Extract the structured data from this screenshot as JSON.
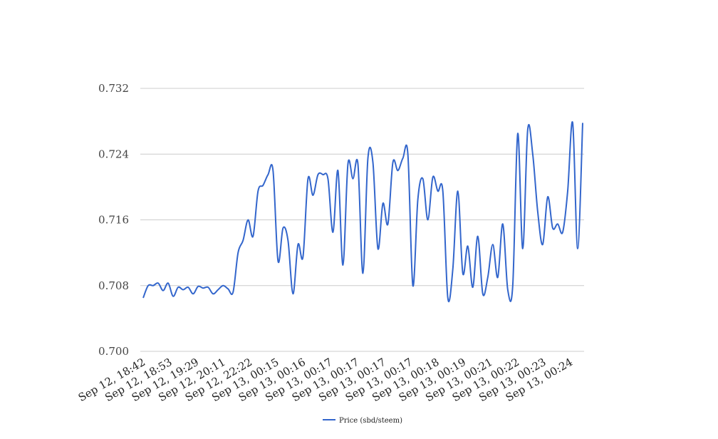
{
  "chart_data": {
    "type": "line",
    "title": "",
    "xlabel": "",
    "ylabel": "",
    "ylim": [
      0.7,
      0.732
    ],
    "y_ticks": [
      "0.700",
      "0.708",
      "0.716",
      "0.724",
      "0.732"
    ],
    "x_tick_labels": [
      "Sep 12, 18:42",
      "Sep 12, 18:53",
      "Sep 12, 19:29",
      "Sep 12, 20:11",
      "Sep 12, 22:22",
      "Sep 13, 00:15",
      "Sep 13, 00:16",
      "Sep 13, 00:17",
      "Sep 13, 00:17",
      "Sep 13, 00:17",
      "Sep 13, 00:17",
      "Sep 13, 00:18",
      "Sep 13, 00:19",
      "Sep 13, 00:21",
      "Sep 13, 00:22",
      "Sep 13, 00:23",
      "Sep 13, 00:24"
    ],
    "grid": true,
    "legend_position": "bottom",
    "colors": {
      "series": "#3366cc",
      "grid": "#cccccc"
    },
    "series": [
      {
        "name": "Price (sbd/steem)",
        "values": [
          0.7065,
          0.708,
          0.708,
          0.7083,
          0.7074,
          0.7083,
          0.7067,
          0.7078,
          0.7075,
          0.7078,
          0.707,
          0.7079,
          0.7077,
          0.7078,
          0.707,
          0.7075,
          0.708,
          0.7076,
          0.7072,
          0.712,
          0.7135,
          0.716,
          0.714,
          0.7195,
          0.7202,
          0.7215,
          0.722,
          0.711,
          0.715,
          0.7135,
          0.707,
          0.713,
          0.7115,
          0.721,
          0.719,
          0.7215,
          0.7215,
          0.721,
          0.7145,
          0.722,
          0.7105,
          0.7228,
          0.721,
          0.7228,
          0.7095,
          0.7235,
          0.723,
          0.7125,
          0.718,
          0.7155,
          0.723,
          0.722,
          0.7235,
          0.724,
          0.708,
          0.7185,
          0.721,
          0.716,
          0.7212,
          0.7195,
          0.7195,
          0.7065,
          0.71,
          0.7195,
          0.7095,
          0.7128,
          0.7078,
          0.714,
          0.707,
          0.709,
          0.713,
          0.709,
          0.7155,
          0.7075,
          0.708,
          0.7265,
          0.7125,
          0.727,
          0.724,
          0.717,
          0.713,
          0.7188,
          0.715,
          0.7155,
          0.7145,
          0.7195,
          0.7278,
          0.7125,
          0.7278
        ]
      }
    ]
  }
}
